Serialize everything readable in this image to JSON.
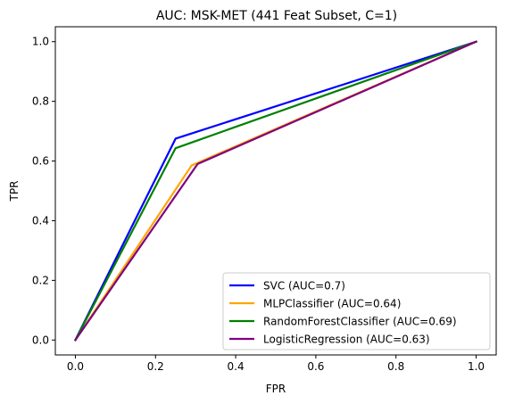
{
  "chart_data": {
    "type": "line",
    "title": "AUC: MSK-MET (441 Feat Subset, C=1)",
    "xlabel": "FPR",
    "ylabel": "TPR",
    "xlim": [
      -0.05,
      1.05
    ],
    "ylim": [
      -0.05,
      1.05
    ],
    "xticks": [
      0.0,
      0.2,
      0.4,
      0.6,
      0.8,
      1.0
    ],
    "yticks": [
      0.0,
      0.2,
      0.4,
      0.6,
      0.8,
      1.0
    ],
    "xtick_labels": [
      "0.0",
      "0.2",
      "0.4",
      "0.6",
      "0.8",
      "1.0"
    ],
    "ytick_labels": [
      "0.0",
      "0.2",
      "0.4",
      "0.6",
      "0.8",
      "1.0"
    ],
    "grid": false,
    "legend_position": "bottom-right",
    "series": [
      {
        "name": "SVC (AUC=0.7)",
        "color": "#0000ff",
        "x": [
          0.0,
          0.25,
          1.0
        ],
        "y": [
          0.0,
          0.675,
          1.0
        ]
      },
      {
        "name": "MLPClassifier (AUC=0.64)",
        "color": "#ffa500",
        "x": [
          0.0,
          0.29,
          1.0
        ],
        "y": [
          0.0,
          0.585,
          1.0
        ]
      },
      {
        "name": "RandomForestClassifier (AUC=0.69)",
        "color": "#008000",
        "x": [
          0.0,
          0.25,
          1.0
        ],
        "y": [
          0.0,
          0.643,
          1.0
        ]
      },
      {
        "name": "LogisticRegression (AUC=0.63)",
        "color": "#800080",
        "x": [
          0.0,
          0.305,
          1.0
        ],
        "y": [
          0.0,
          0.59,
          1.0
        ]
      }
    ]
  }
}
